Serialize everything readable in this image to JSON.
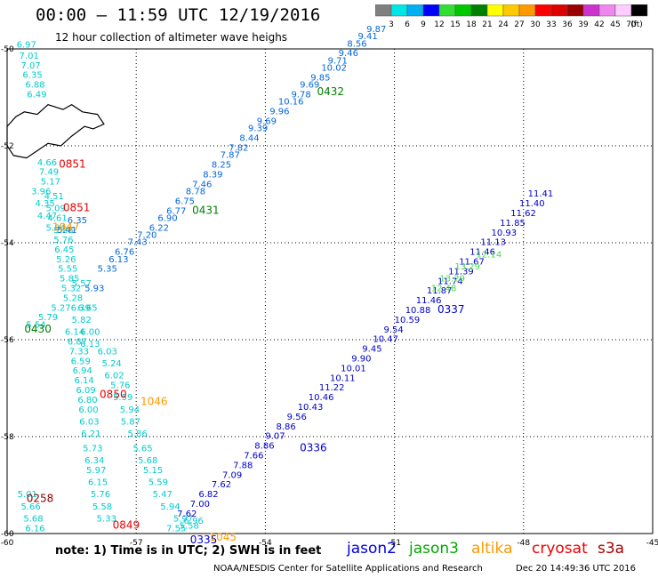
{
  "header": {
    "title": "00:00 – 11:59 UTC 12/19/2016",
    "subtitle": "12 hour collection of altimeter wave heighs"
  },
  "colorbar": {
    "unit": "(ft)",
    "swatches": [
      {
        "color": "#808080",
        "label": "3"
      },
      {
        "color": "#00e5e5",
        "label": "6"
      },
      {
        "color": "#00b0f0",
        "label": "9"
      },
      {
        "color": "#0000ff",
        "label": "12"
      },
      {
        "color": "#33dd33",
        "label": "15"
      },
      {
        "color": "#00c800",
        "label": "18"
      },
      {
        "color": "#008000",
        "label": "21"
      },
      {
        "color": "#ffff00",
        "label": "24"
      },
      {
        "color": "#ffc800",
        "label": "27"
      },
      {
        "color": "#ff9900",
        "label": "30"
      },
      {
        "color": "#ff0000",
        "label": "33"
      },
      {
        "color": "#dd0000",
        "label": "36"
      },
      {
        "color": "#990000",
        "label": "39"
      },
      {
        "color": "#cc33cc",
        "label": "42"
      },
      {
        "color": "#ee88ee",
        "label": "45"
      },
      {
        "color": "#ffccff",
        "label": "70"
      },
      {
        "color": "#000000",
        "label": ""
      }
    ]
  },
  "map": {
    "lon_ticks": [
      "-60",
      "-57",
      "-54",
      "-51",
      "-48",
      "-45"
    ],
    "lat_ticks": [
      "-50",
      "-52",
      "-54",
      "-56",
      "-58",
      "-60"
    ],
    "grid": "dotted",
    "coastline": "falkland-islands"
  },
  "tracks": [
    {
      "id": "west-near",
      "color": "#00cccc",
      "points": [
        {
          "lon": -59.78,
          "lat": -49.97,
          "v": "6.97"
        },
        {
          "lon": -59.72,
          "lat": -50.2,
          "v": "7.01"
        },
        {
          "lon": -59.68,
          "lat": -50.4,
          "v": "7.07"
        },
        {
          "lon": -59.64,
          "lat": -50.6,
          "v": "6.35"
        },
        {
          "lon": -59.58,
          "lat": -50.8,
          "v": "6.88"
        },
        {
          "lon": -59.54,
          "lat": -51.0,
          "v": "6.49"
        },
        {
          "lon": -59.3,
          "lat": -52.4,
          "v": "4.66"
        },
        {
          "lon": -59.26,
          "lat": -52.6,
          "v": "7.49"
        },
        {
          "lon": -59.22,
          "lat": -52.8,
          "v": "5.17"
        },
        {
          "lon": -59.44,
          "lat": -53.0,
          "v": "3.96"
        },
        {
          "lon": -59.14,
          "lat": -53.1,
          "v": "4.51"
        },
        {
          "lon": -59.35,
          "lat": -53.25,
          "v": "4.35"
        },
        {
          "lon": -59.1,
          "lat": -53.35,
          "v": "5.09"
        },
        {
          "lon": -59.3,
          "lat": -53.5,
          "v": "4.47"
        },
        {
          "lon": -59.06,
          "lat": -53.55,
          "v": "4.61"
        },
        {
          "lon": -59.1,
          "lat": -53.75,
          "v": "5.84"
        },
        {
          "lon": -58.92,
          "lat": -53.8,
          "v": "5.28"
        },
        {
          "lon": -58.92,
          "lat": -54.0,
          "v": "5.76"
        },
        {
          "lon": -58.9,
          "lat": -54.2,
          "v": "6.45"
        },
        {
          "lon": -58.86,
          "lat": -54.4,
          "v": "5.26"
        },
        {
          "lon": -58.82,
          "lat": -54.6,
          "v": "5.55"
        },
        {
          "lon": -58.78,
          "lat": -54.8,
          "v": "5.85"
        },
        {
          "lon": -58.5,
          "lat": -54.9,
          "v": "5.57"
        },
        {
          "lon": -58.74,
          "lat": -55.0,
          "v": "5.32"
        },
        {
          "lon": -58.7,
          "lat": -55.2,
          "v": "5.28"
        },
        {
          "lon": -58.98,
          "lat": -55.4,
          "v": "5.27"
        },
        {
          "lon": -58.52,
          "lat": -55.4,
          "v": "6.39"
        },
        {
          "lon": -58.36,
          "lat": -55.4,
          "v": "6.65"
        },
        {
          "lon": -59.28,
          "lat": -55.6,
          "v": "5.79"
        },
        {
          "lon": -58.5,
          "lat": -55.65,
          "v": "5.82"
        },
        {
          "lon": -59.56,
          "lat": -55.75,
          "v": "5.54"
        },
        {
          "lon": -58.66,
          "lat": -55.9,
          "v": "6.14"
        },
        {
          "lon": -58.3,
          "lat": -55.9,
          "v": "6.00"
        },
        {
          "lon": -58.6,
          "lat": -56.1,
          "v": "6.87"
        },
        {
          "lon": -58.3,
          "lat": -56.15,
          "v": "6.13"
        },
        {
          "lon": -58.56,
          "lat": -56.3,
          "v": "7.33"
        },
        {
          "lon": -57.9,
          "lat": -56.3,
          "v": "6.03"
        },
        {
          "lon": -58.52,
          "lat": -56.5,
          "v": "6.59"
        },
        {
          "lon": -57.8,
          "lat": -56.55,
          "v": "5.24"
        },
        {
          "lon": -58.48,
          "lat": -56.7,
          "v": "6.94"
        },
        {
          "lon": -57.74,
          "lat": -56.8,
          "v": "6.02"
        },
        {
          "lon": -58.44,
          "lat": -56.9,
          "v": "6.14"
        },
        {
          "lon": -57.6,
          "lat": -57.0,
          "v": "5.76"
        },
        {
          "lon": -58.4,
          "lat": -57.1,
          "v": "6.09"
        },
        {
          "lon": -57.54,
          "lat": -57.25,
          "v": "5.59"
        },
        {
          "lon": -58.36,
          "lat": -57.3,
          "v": "6.80"
        },
        {
          "lon": -57.38,
          "lat": -57.5,
          "v": "5.94"
        },
        {
          "lon": -58.34,
          "lat": -57.5,
          "v": "6.00"
        },
        {
          "lon": -57.36,
          "lat": -57.75,
          "v": "5.87"
        },
        {
          "lon": -58.32,
          "lat": -57.75,
          "v": "6.03"
        },
        {
          "lon": -57.2,
          "lat": -58.0,
          "v": "5.86"
        },
        {
          "lon": -58.28,
          "lat": -58.0,
          "v": "6.21"
        },
        {
          "lon": -57.08,
          "lat": -58.3,
          "v": "5.65"
        },
        {
          "lon": -58.24,
          "lat": -58.3,
          "v": "5.73"
        },
        {
          "lon": -56.96,
          "lat": -58.55,
          "v": "5.68"
        },
        {
          "lon": -58.2,
          "lat": -58.55,
          "v": "6.34"
        },
        {
          "lon": -56.84,
          "lat": -58.75,
          "v": "5.15"
        },
        {
          "lon": -58.16,
          "lat": -58.75,
          "v": "5.97"
        },
        {
          "lon": -56.72,
          "lat": -59.0,
          "v": "5.59"
        },
        {
          "lon": -58.12,
          "lat": -59.0,
          "v": "6.15"
        },
        {
          "lon": -56.62,
          "lat": -59.25,
          "v": "5.47"
        },
        {
          "lon": -58.06,
          "lat": -59.25,
          "v": "5.76"
        },
        {
          "lon": -56.44,
          "lat": -59.5,
          "v": "5.94"
        },
        {
          "lon": -58.02,
          "lat": -59.5,
          "v": "5.58"
        },
        {
          "lon": -57.92,
          "lat": -59.75,
          "v": "5.33"
        },
        {
          "lon": -56.14,
          "lat": -59.75,
          "v": "5.97"
        },
        {
          "lon": -56.3,
          "lat": -59.95,
          "v": "7.55"
        },
        {
          "lon": -56.0,
          "lat": -59.9,
          "v": "5.58"
        },
        {
          "lon": -55.9,
          "lat": -59.8,
          "v": "6.96"
        },
        {
          "lon": -59.76,
          "lat": -59.25,
          "v": "5.01"
        },
        {
          "lon": -59.68,
          "lat": -59.5,
          "v": "5.66"
        },
        {
          "lon": -59.62,
          "lat": -59.75,
          "v": "5.68"
        },
        {
          "lon": -59.58,
          "lat": -59.95,
          "v": "6.16"
        }
      ]
    },
    {
      "id": "ne-track",
      "color": "#0066dd",
      "points": [
        {
          "lon": -58.84,
          "lat": -53.8,
          "v": "5.41"
        },
        {
          "lon": -58.6,
          "lat": -53.6,
          "v": "6.35"
        },
        {
          "lon": -58.2,
          "lat": -55.0,
          "v": "5.93"
        },
        {
          "lon": -57.9,
          "lat": -54.6,
          "v": "5.35"
        },
        {
          "lon": -57.64,
          "lat": -54.4,
          "v": "6.13"
        },
        {
          "lon": -57.5,
          "lat": -54.25,
          "v": "6.76"
        },
        {
          "lon": -57.2,
          "lat": -54.05,
          "v": "7.43"
        },
        {
          "lon": -56.98,
          "lat": -53.9,
          "v": "7.20"
        },
        {
          "lon": -56.7,
          "lat": -53.75,
          "v": "6.22"
        },
        {
          "lon": -56.5,
          "lat": -53.55,
          "v": "6.90"
        },
        {
          "lon": -56.3,
          "lat": -53.4,
          "v": "6.77"
        },
        {
          "lon": -56.1,
          "lat": -53.2,
          "v": "6.75"
        },
        {
          "lon": -55.85,
          "lat": -53.0,
          "v": "8.78"
        },
        {
          "lon": -55.7,
          "lat": -52.85,
          "v": "7.46"
        },
        {
          "lon": -55.45,
          "lat": -52.65,
          "v": "8.39"
        },
        {
          "lon": -55.25,
          "lat": -52.45,
          "v": "8.25"
        },
        {
          "lon": -55.05,
          "lat": -52.25,
          "v": "7.87"
        },
        {
          "lon": -54.85,
          "lat": -52.1,
          "v": "7.82"
        },
        {
          "lon": -54.6,
          "lat": -51.9,
          "v": "8.44"
        },
        {
          "lon": -54.4,
          "lat": -51.7,
          "v": "9.39"
        },
        {
          "lon": -54.2,
          "lat": -51.55,
          "v": "9.69"
        },
        {
          "lon": -53.9,
          "lat": -51.35,
          "v": "9.96"
        },
        {
          "lon": -53.7,
          "lat": -51.15,
          "v": "10.16"
        },
        {
          "lon": -53.4,
          "lat": -51.0,
          "v": "9.78"
        },
        {
          "lon": -53.2,
          "lat": -50.8,
          "v": "9.69"
        },
        {
          "lon": -52.95,
          "lat": -50.65,
          "v": "9.85"
        },
        {
          "lon": -52.7,
          "lat": -50.45,
          "v": "10.02"
        },
        {
          "lon": -52.55,
          "lat": -50.3,
          "v": "9.71"
        },
        {
          "lon": -52.3,
          "lat": -50.15,
          "v": "9.46"
        },
        {
          "lon": -52.1,
          "lat": -49.95,
          "v": "8.56"
        },
        {
          "lon": -51.85,
          "lat": -49.8,
          "v": "9.41"
        },
        {
          "lon": -51.65,
          "lat": -49.65,
          "v": "9.87"
        }
      ]
    },
    {
      "id": "se-track",
      "color": "#0000cc",
      "points": [
        {
          "lon": -56.05,
          "lat": -59.65,
          "v": "7.62"
        },
        {
          "lon": -55.75,
          "lat": -59.45,
          "v": "7.00"
        },
        {
          "lon": -55.55,
          "lat": -59.25,
          "v": "6.82"
        },
        {
          "lon": -55.25,
          "lat": -59.05,
          "v": "7.62"
        },
        {
          "lon": -55.0,
          "lat": -58.85,
          "v": "7.09"
        },
        {
          "lon": -54.75,
          "lat": -58.65,
          "v": "7.88"
        },
        {
          "lon": -54.5,
          "lat": -58.45,
          "v": "7.66"
        },
        {
          "lon": -54.25,
          "lat": -58.25,
          "v": "8.86"
        },
        {
          "lon": -54.0,
          "lat": -58.05,
          "v": "9.07"
        },
        {
          "lon": -53.75,
          "lat": -57.85,
          "v": "8.86"
        },
        {
          "lon": -53.5,
          "lat": -57.65,
          "v": "9.56"
        },
        {
          "lon": -53.25,
          "lat": -57.45,
          "v": "10.43"
        },
        {
          "lon": -53.0,
          "lat": -57.25,
          "v": "10.46"
        },
        {
          "lon": -52.75,
          "lat": -57.05,
          "v": "11.22"
        },
        {
          "lon": -52.5,
          "lat": -56.85,
          "v": "10.11"
        },
        {
          "lon": -52.25,
          "lat": -56.65,
          "v": "10.01"
        },
        {
          "lon": -52.0,
          "lat": -56.45,
          "v": "9.90"
        },
        {
          "lon": -51.75,
          "lat": -56.25,
          "v": "9.45"
        },
        {
          "lon": -51.5,
          "lat": -56.05,
          "v": "10.47"
        },
        {
          "lon": -51.25,
          "lat": -55.85,
          "v": "9.54"
        },
        {
          "lon": -51.0,
          "lat": -55.65,
          "v": "10.59"
        },
        {
          "lon": -50.75,
          "lat": -55.45,
          "v": "10.88"
        },
        {
          "lon": -50.5,
          "lat": -55.25,
          "v": "11.46"
        },
        {
          "lon": -50.25,
          "lat": -55.05,
          "v": "11.87"
        },
        {
          "lon": -50.0,
          "lat": -54.85,
          "v": "11.74"
        },
        {
          "lon": -49.75,
          "lat": -54.65,
          "v": "11.39"
        },
        {
          "lon": -49.5,
          "lat": -54.45,
          "v": "11.67"
        },
        {
          "lon": -49.25,
          "lat": -54.25,
          "v": "11.46"
        },
        {
          "lon": -49.0,
          "lat": -54.05,
          "v": "11.13"
        },
        {
          "lon": -48.75,
          "lat": -53.85,
          "v": "10.93"
        },
        {
          "lon": -48.55,
          "lat": -53.65,
          "v": "11.85"
        },
        {
          "lon": -48.3,
          "lat": -53.45,
          "v": "11.62"
        },
        {
          "lon": -48.1,
          "lat": -53.25,
          "v": "11.40"
        },
        {
          "lon": -47.9,
          "lat": -53.05,
          "v": "11.41"
        }
      ]
    },
    {
      "id": "se-green",
      "color": "#44dd44",
      "points": [
        {
          "lon": -50.15,
          "lat": -55.0,
          "v": "12.48"
        },
        {
          "lon": -49.95,
          "lat": -54.8,
          "v": "13.29"
        },
        {
          "lon": -49.6,
          "lat": -54.55,
          "v": "13.29"
        },
        {
          "lon": -49.1,
          "lat": -54.3,
          "v": "12.14"
        }
      ]
    }
  ],
  "times": [
    {
      "lon": -58.8,
      "lat": -52.45,
      "t": "0851",
      "color": "#ee0000"
    },
    {
      "lon": -58.7,
      "lat": -53.35,
      "t": "0851",
      "color": "#ee0000"
    },
    {
      "lon": -58.95,
      "lat": -53.75,
      "t": "1047",
      "color": "#ff9900"
    },
    {
      "lon": -52.8,
      "lat": -50.95,
      "t": "0432",
      "color": "#008000"
    },
    {
      "lon": -55.7,
      "lat": -53.4,
      "t": "0431",
      "color": "#008000"
    },
    {
      "lon": -59.6,
      "lat": -55.85,
      "t": "0430",
      "color": "#008000"
    },
    {
      "lon": -57.85,
      "lat": -57.2,
      "t": "0850",
      "color": "#ee0000"
    },
    {
      "lon": -56.9,
      "lat": -57.35,
      "t": "1046",
      "color": "#ff9900"
    },
    {
      "lon": -59.55,
      "lat": -59.35,
      "t": "0258",
      "color": "#880000"
    },
    {
      "lon": -57.55,
      "lat": -59.9,
      "t": "0849",
      "color": "#ee0000"
    },
    {
      "lon": -50.0,
      "lat": -55.45,
      "t": "0337",
      "color": "#0000cc"
    },
    {
      "lon": -53.2,
      "lat": -58.3,
      "t": "0336",
      "color": "#0000cc"
    },
    {
      "lon": -55.75,
      "lat": -60.2,
      "t": "0335",
      "color": "#0000cc"
    },
    {
      "lon": -55.3,
      "lat": -60.15,
      "t": "1045",
      "color": "#ff9900"
    }
  ],
  "footer": {
    "note": "note:  1) Time is in UTC;  2) SWH is in feet",
    "legend": [
      {
        "label": "jason2",
        "color": "#0000dd"
      },
      {
        "label": "jason3",
        "color": "#00aa00"
      },
      {
        "label": "altika",
        "color": "#ff9900"
      },
      {
        "label": "cryosat",
        "color": "#ee0000"
      },
      {
        "label": "s3a",
        "color": "#aa0000"
      }
    ],
    "credit": "NOAA/NESDIS Center for Satellite Applications and Research",
    "timestamp": "Dec 20 14:49:36 UTC 2016"
  }
}
